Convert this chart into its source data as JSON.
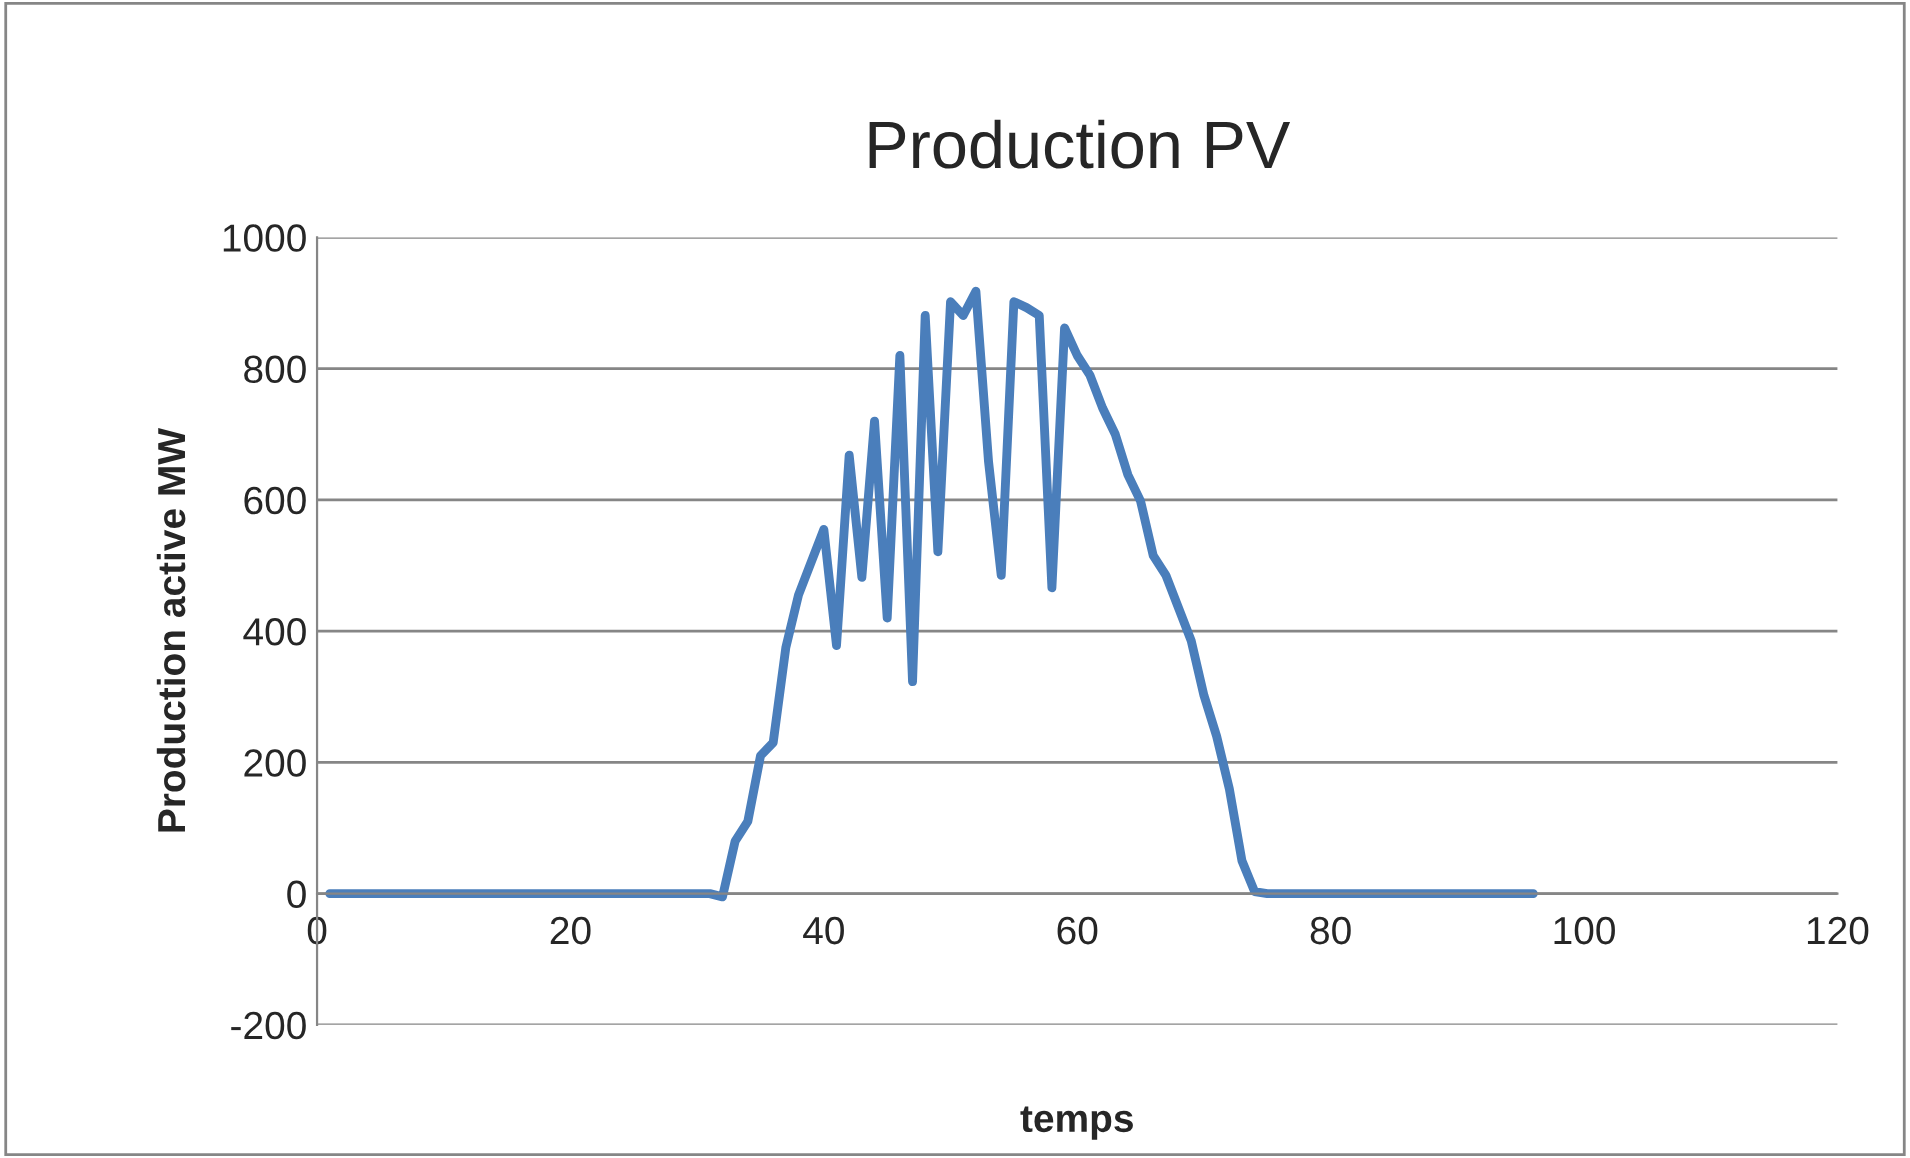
{
  "chart_data": {
    "type": "line",
    "title": "Production PV",
    "xlabel": "temps",
    "ylabel": "Production active MW",
    "series": [
      {
        "color": "#4a7ebb",
        "x": [
          1,
          31,
          32,
          33,
          34,
          35,
          36,
          37,
          38,
          39,
          40,
          41,
          42,
          43,
          44,
          45,
          46,
          47,
          48,
          49,
          50,
          51,
          52,
          53,
          54,
          55,
          56,
          57,
          58,
          59,
          60,
          61,
          62,
          63,
          64,
          65,
          66,
          67,
          68,
          69,
          70,
          71,
          72,
          73,
          74,
          75,
          96
        ],
        "values": [
          0,
          0,
          -5,
          80,
          110,
          210,
          230,
          375,
          455,
          505,
          555,
          378,
          668,
          482,
          720,
          420,
          820,
          323,
          881,
          521,
          902,
          881,
          918,
          658,
          485,
          902,
          893,
          881,
          466,
          862,
          820,
          790,
          740,
          700,
          638,
          598,
          515,
          485,
          435,
          385,
          302,
          240,
          160,
          50,
          3,
          0,
          0
        ]
      }
    ],
    "xlim": [
      0,
      120
    ],
    "xticks": [
      0,
      20,
      40,
      60,
      80,
      100,
      120
    ],
    "ylim": [
      -200,
      1000
    ],
    "yticks": [
      -200,
      0,
      200,
      400,
      600,
      800,
      1000
    ],
    "grid": "y",
    "marker": "none",
    "line_style": "solid"
  }
}
